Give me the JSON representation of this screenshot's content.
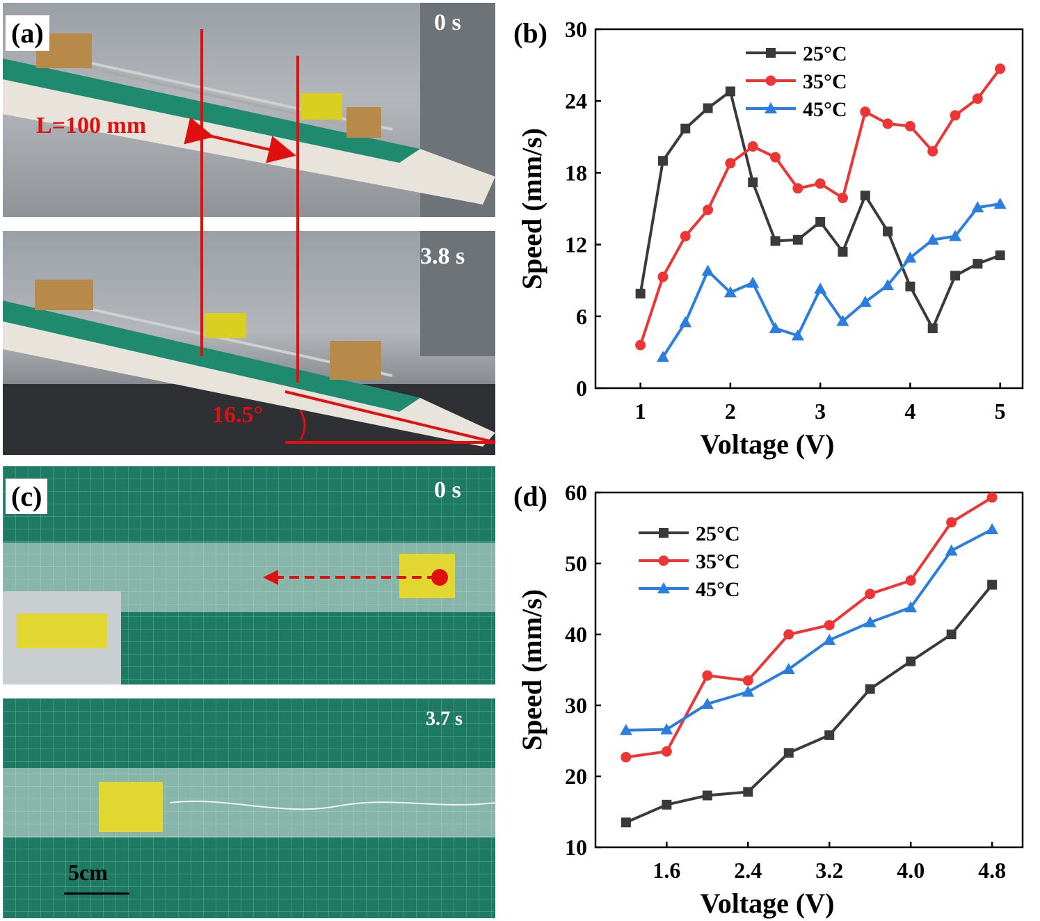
{
  "panels": {
    "a": {
      "letter": "(a)",
      "time_top": "0 s",
      "time_bottom": "3.8 s",
      "length_label": "L=100 mm",
      "angle_label": "16.5°"
    },
    "c": {
      "letter": "(c)",
      "time_top": "0 s",
      "time_bottom": "3.7 s",
      "scale_label": "5cm"
    },
    "b": {
      "letter": "(b)"
    },
    "d": {
      "letter": "(d)"
    }
  },
  "colors": {
    "c25": "#3a3a3a",
    "c35": "#ee3535",
    "c45": "#2a7de1",
    "annot": "#e01010"
  },
  "chart_data": [
    {
      "id": "b",
      "type": "line",
      "xlabel": "Voltage (V)",
      "ylabel": "Speed (mm/s)",
      "xlim": [
        0.5,
        5.25
      ],
      "ylim": [
        0,
        30
      ],
      "xticks": [
        1,
        2,
        3,
        4,
        5
      ],
      "yticks": [
        0,
        6,
        12,
        18,
        24,
        30
      ],
      "legend_position": "top-left",
      "series": [
        {
          "name": "25°C",
          "marker": "square",
          "color": "#3a3a3a",
          "x": [
            1,
            1.25,
            1.5,
            1.75,
            2,
            2.25,
            2.5,
            2.75,
            3,
            3.25,
            3.5,
            3.75,
            4,
            4.25,
            4.5,
            4.75,
            5
          ],
          "y": [
            7.9,
            19.0,
            21.7,
            23.4,
            24.8,
            17.2,
            12.3,
            12.4,
            13.9,
            11.4,
            16.1,
            13.1,
            8.5,
            5.0,
            9.4,
            10.4,
            11.1
          ]
        },
        {
          "name": "35°C",
          "marker": "circle",
          "color": "#ee3535",
          "x": [
            1,
            1.25,
            1.5,
            1.75,
            2,
            2.25,
            2.5,
            2.75,
            3,
            3.25,
            3.5,
            3.75,
            4,
            4.25,
            4.5,
            4.75,
            5
          ],
          "y": [
            3.6,
            9.3,
            12.7,
            14.9,
            18.8,
            20.2,
            19.3,
            16.7,
            17.1,
            15.9,
            23.1,
            22.1,
            21.9,
            19.8,
            22.8,
            24.2,
            26.7
          ]
        },
        {
          "name": "45°C",
          "marker": "triangle",
          "color": "#2a7de1",
          "x": [
            1.25,
            1.5,
            1.75,
            2,
            2.25,
            2.5,
            2.75,
            3,
            3.25,
            3.5,
            3.75,
            4,
            4.25,
            4.5,
            4.75,
            5
          ],
          "y": [
            2.6,
            5.5,
            9.8,
            8.0,
            8.8,
            5.0,
            4.4,
            8.3,
            5.6,
            7.2,
            8.6,
            10.9,
            12.4,
            12.7,
            15.1,
            15.4
          ]
        }
      ]
    },
    {
      "id": "d",
      "type": "line",
      "xlabel": "Voltage (V)",
      "ylabel": "Speed (mm/s)",
      "xlim": [
        0.9,
        5.1
      ],
      "ylim": [
        10,
        60
      ],
      "xticks": [
        1.6,
        2.4,
        3.2,
        4.0,
        4.8
      ],
      "xtick_labels": [
        "1.6",
        "2.4",
        "3.2",
        "4.0",
        "4.8"
      ],
      "yticks": [
        10,
        20,
        30,
        40,
        50,
        60
      ],
      "legend_position": "top-left",
      "series": [
        {
          "name": "25°C",
          "marker": "square",
          "color": "#3a3a3a",
          "x": [
            1.2,
            1.6,
            2.0,
            2.4,
            2.8,
            3.2,
            3.6,
            4.0,
            4.4,
            4.8
          ],
          "y": [
            13.5,
            16.0,
            17.3,
            17.8,
            23.3,
            25.8,
            32.3,
            36.2,
            40.0,
            47.0
          ]
        },
        {
          "name": "35°C",
          "marker": "circle",
          "color": "#ee3535",
          "x": [
            1.2,
            1.6,
            2.0,
            2.4,
            2.8,
            3.2,
            3.6,
            4.0,
            4.4,
            4.8
          ],
          "y": [
            22.7,
            23.5,
            34.2,
            33.5,
            40.0,
            41.3,
            45.7,
            47.6,
            55.8,
            59.3
          ]
        },
        {
          "name": "45°C",
          "marker": "triangle",
          "color": "#2a7de1",
          "x": [
            1.2,
            1.6,
            2.0,
            2.4,
            2.8,
            3.2,
            3.6,
            4.0,
            4.4,
            4.8
          ],
          "y": [
            26.5,
            26.6,
            30.2,
            31.9,
            35.1,
            39.2,
            41.7,
            43.8,
            51.8,
            54.8
          ]
        }
      ]
    }
  ]
}
